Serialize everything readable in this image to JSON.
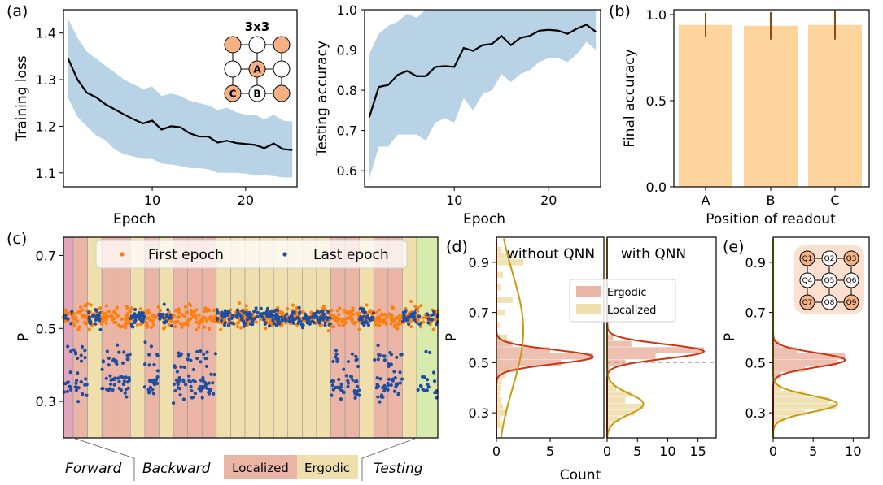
{
  "colors": {
    "band": "#b9d3e6",
    "mean_line": "#000000",
    "bar": "#fdd49e",
    "errbar": "#8c4a13",
    "first_epoch": "#ff7f0e",
    "last_epoch": "#1f4ea1",
    "localized": "#eab5a5",
    "ergodic": "#eedfad",
    "forward_region": "#e3a6bd",
    "testing_region": "#d8eaac",
    "ergodic_fit": "#cc3311",
    "localized_fit": "#c79a0e",
    "lattice_orange": "#f4b183"
  },
  "panel_labels": {
    "a": "(a)",
    "b": "(b)",
    "c": "(c)",
    "d": "(d)",
    "e": "(e)"
  },
  "lattice_a": {
    "title": "3x3",
    "rows": [
      [
        "",
        "",
        ""
      ],
      [
        "",
        "A",
        ""
      ],
      [
        "C",
        "B",
        ""
      ]
    ],
    "filled": [
      [
        true,
        false,
        true
      ],
      [
        false,
        true,
        false
      ],
      [
        true,
        false,
        true
      ]
    ]
  },
  "lattice_e": {
    "rows": [
      [
        "Q1",
        "Q2",
        "Q3"
      ],
      [
        "Q4",
        "Q5",
        "Q6"
      ],
      [
        "Q7",
        "Q8",
        "Q9"
      ]
    ],
    "filled": [
      [
        true,
        false,
        true
      ],
      [
        false,
        false,
        false
      ],
      [
        true,
        false,
        true
      ]
    ]
  },
  "chart_data": [
    {
      "id": "train-loss",
      "type": "line",
      "xlabel": "Epoch",
      "ylabel": "Training loss",
      "xlim": [
        0.5,
        25.5
      ],
      "ylim": [
        1.07,
        1.45
      ],
      "xticks": [
        10,
        20
      ],
      "yticks": [
        1.1,
        1.2,
        1.3,
        1.4
      ],
      "x": [
        1,
        2,
        3,
        4,
        5,
        6,
        7,
        8,
        9,
        10,
        11,
        12,
        13,
        14,
        15,
        16,
        17,
        18,
        19,
        20,
        21,
        22,
        23,
        24,
        25
      ],
      "series": [
        {
          "values": [
            1.345,
            1.3,
            1.272,
            1.262,
            1.247,
            1.236,
            1.225,
            1.215,
            1.206,
            1.212,
            1.193,
            1.2,
            1.198,
            1.185,
            1.178,
            1.178,
            1.165,
            1.169,
            1.164,
            1.162,
            1.16,
            1.153,
            1.163,
            1.151,
            1.149
          ],
          "lower": [
            1.26,
            1.22,
            1.2,
            1.18,
            1.17,
            1.15,
            1.14,
            1.135,
            1.13,
            1.13,
            1.12,
            1.118,
            1.115,
            1.11,
            1.11,
            1.108,
            1.1,
            1.1,
            1.1,
            1.098,
            1.095,
            1.095,
            1.093,
            1.09,
            1.09
          ],
          "upper": [
            1.43,
            1.39,
            1.36,
            1.345,
            1.33,
            1.315,
            1.3,
            1.29,
            1.28,
            1.285,
            1.265,
            1.27,
            1.265,
            1.255,
            1.25,
            1.245,
            1.235,
            1.24,
            1.23,
            1.225,
            1.225,
            1.215,
            1.225,
            1.212,
            1.21
          ]
        }
      ]
    },
    {
      "id": "test-acc",
      "type": "line",
      "xlabel": "Epoch",
      "ylabel": "Testing accuracy",
      "xlim": [
        0.5,
        25.5
      ],
      "ylim": [
        0.56,
        1.0
      ],
      "xticks": [
        10,
        20
      ],
      "yticks": [
        0.6,
        0.7,
        0.8,
        0.9,
        1.0
      ],
      "x": [
        1,
        2,
        3,
        4,
        5,
        6,
        7,
        8,
        9,
        10,
        11,
        12,
        13,
        14,
        15,
        16,
        17,
        18,
        19,
        20,
        21,
        22,
        23,
        24,
        25
      ],
      "series": [
        {
          "values": [
            0.733,
            0.808,
            0.813,
            0.838,
            0.848,
            0.835,
            0.835,
            0.858,
            0.86,
            0.858,
            0.905,
            0.898,
            0.912,
            0.915,
            0.935,
            0.912,
            0.93,
            0.935,
            0.948,
            0.95,
            0.948,
            0.94,
            0.953,
            0.963,
            0.945
          ],
          "lower": [
            0.58,
            0.66,
            0.66,
            0.69,
            0.69,
            0.69,
            0.675,
            0.72,
            0.73,
            0.72,
            0.78,
            0.75,
            0.79,
            0.8,
            0.84,
            0.82,
            0.84,
            0.85,
            0.87,
            0.88,
            0.88,
            0.87,
            0.89,
            0.92,
            0.9
          ],
          "upper": [
            0.89,
            0.94,
            0.96,
            0.97,
            0.99,
            0.98,
            1.0,
            1.0,
            1.0,
            1.0,
            1.0,
            1.0,
            1.0,
            1.0,
            1.0,
            1.0,
            1.0,
            1.0,
            1.0,
            1.0,
            1.0,
            1.0,
            1.0,
            1.0,
            1.0
          ]
        }
      ]
    },
    {
      "id": "final-acc",
      "type": "bar",
      "xlabel": "Position of readout",
      "ylabel": "Final accuracy",
      "categories": [
        "A",
        "B",
        "C"
      ],
      "values": [
        0.94,
        0.935,
        0.94
      ],
      "errors": [
        0.07,
        0.08,
        0.085
      ],
      "ylim": [
        0.0,
        1.0
      ],
      "yticks": [
        0.0,
        0.5,
        1.0
      ]
    },
    {
      "id": "scatter-p",
      "type": "scatter",
      "ylabel": "P",
      "ylim": [
        0.2,
        0.75
      ],
      "yticks": [
        0.3,
        0.5,
        0.7
      ],
      "legend": [
        "First epoch",
        "Last epoch"
      ],
      "segments": [
        "forward",
        "L",
        "E",
        "L",
        "L",
        "E",
        "L",
        "E",
        "L",
        "L",
        "L",
        "E",
        "E",
        "E",
        "E",
        "E",
        "E",
        "E",
        "E",
        "L",
        "L",
        "E",
        "L",
        "L",
        "E",
        "testing"
      ],
      "labels": [
        "Forward",
        "Backward",
        "Localized",
        "Ergodic",
        "Testing"
      ]
    },
    {
      "id": "hist-without",
      "type": "bar",
      "title": "without QNN",
      "ylabel": "P",
      "xlabel": "Count",
      "xlim": [
        0,
        10
      ],
      "xticks": [
        0,
        5
      ],
      "ylim": [
        0.2,
        1.0
      ],
      "yticks": [
        0.3,
        0.5,
        0.7,
        0.9
      ],
      "legend": [
        "Ergodic",
        "Localized"
      ],
      "bins": [
        0.25,
        0.275,
        0.3,
        0.325,
        0.35,
        0.375,
        0.4,
        0.425,
        0.45,
        0.475,
        0.5,
        0.525,
        0.55,
        0.575,
        0.6,
        0.65,
        0.7,
        0.75,
        0.8,
        0.85,
        0.9,
        0.925,
        0.95
      ],
      "ergodic_counts": [
        0,
        0,
        0,
        0,
        0,
        0,
        0,
        0,
        0.3,
        2,
        6,
        9,
        5,
        1.5,
        0.3,
        0,
        0,
        0,
        0,
        0,
        0,
        0,
        0
      ],
      "localized_counts": [
        0.5,
        0.3,
        1.0,
        0.6,
        0.5,
        0.3,
        0.4,
        0.5,
        0.8,
        1.2,
        0.5,
        0.3,
        0.6,
        0.4,
        1.0,
        0.3,
        0.8,
        1.5,
        0.4,
        0.6,
        2.5,
        1.5,
        0.5
      ]
    },
    {
      "id": "hist-with",
      "type": "bar",
      "title": "with QNN",
      "xlim": [
        0,
        18
      ],
      "xticks": [
        0,
        5,
        10,
        15
      ],
      "ylim": [
        0.2,
        1.0
      ],
      "bins": [
        0.25,
        0.275,
        0.3,
        0.325,
        0.35,
        0.375,
        0.4,
        0.425,
        0.45,
        0.475,
        0.5,
        0.525,
        0.55,
        0.575,
        0.6,
        0.65,
        0.7
      ],
      "ergodic_counts": [
        0,
        0,
        0,
        0,
        0,
        0,
        0,
        0,
        0,
        0.5,
        3,
        8,
        16,
        4,
        1,
        0.3,
        0.2
      ],
      "localized_counts": [
        0.5,
        2,
        4.5,
        6,
        3,
        4,
        1.5,
        0.5,
        0.3,
        0,
        0,
        0,
        0,
        0,
        0,
        0,
        0
      ]
    },
    {
      "id": "hist-e",
      "type": "bar",
      "ylabel": "P",
      "xlim": [
        0,
        12
      ],
      "xticks": [
        0,
        5,
        10
      ],
      "ylim": [
        0.2,
        1.0
      ],
      "yticks": [
        0.3,
        0.5,
        0.7,
        0.9
      ],
      "bins": [
        0.25,
        0.275,
        0.3,
        0.325,
        0.35,
        0.375,
        0.4,
        0.425,
        0.45,
        0.475,
        0.5,
        0.525,
        0.55,
        0.575
      ],
      "ergodic_counts": [
        0,
        0,
        0,
        0,
        0,
        0,
        0,
        0.2,
        1,
        4,
        8,
        9,
        3,
        0.8
      ],
      "localized_counts": [
        0.3,
        1.5,
        4,
        8,
        7,
        4,
        1,
        0.3,
        0,
        0,
        0,
        0,
        0,
        0
      ]
    }
  ]
}
